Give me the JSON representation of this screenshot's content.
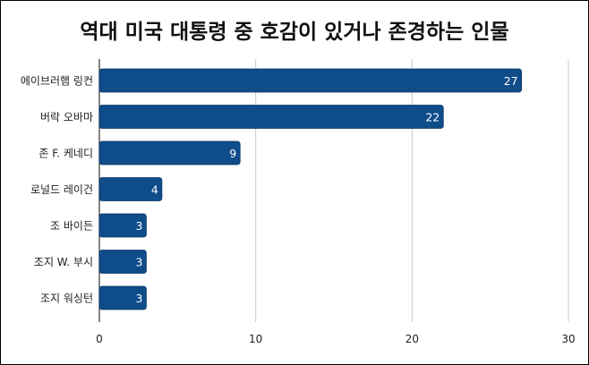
{
  "chart_data": {
    "type": "bar",
    "orientation": "horizontal",
    "title": "역대 미국 대통령 중 호감이 있거나 존경하는 인물",
    "categories": [
      "에이브러햄 링컨",
      "버락 오바마",
      "존 F. 케네디",
      "로널드 레이건",
      "조 바이든",
      "조지 W. 부시",
      "조지 워싱턴"
    ],
    "values": [
      27,
      22,
      9,
      4,
      3,
      3,
      3
    ],
    "xlim": [
      0,
      30
    ],
    "xticks": [
      "0",
      "10",
      "20",
      "30"
    ],
    "grid": "vertical",
    "legend": "none",
    "xlabel": "",
    "ylabel": "",
    "bar_color": "#0f4c8a",
    "value_label_color": "#ffffff"
  }
}
